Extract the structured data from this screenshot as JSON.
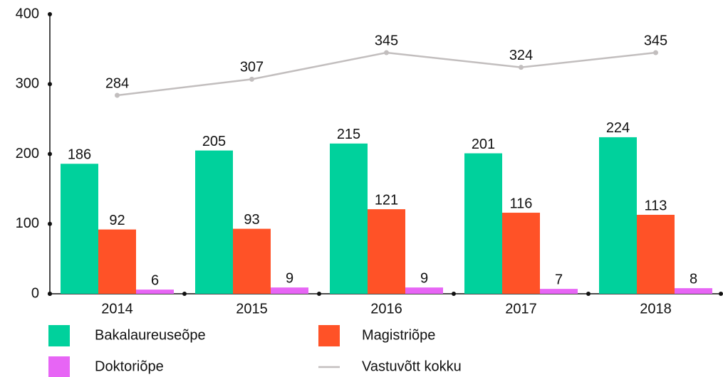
{
  "chart_data": {
    "type": "bar",
    "categories": [
      "2014",
      "2015",
      "2016",
      "2017",
      "2018"
    ],
    "series": [
      {
        "name": "Bakalaureuseõpe",
        "color": "#00d19c",
        "values": [
          186,
          205,
          215,
          201,
          224
        ]
      },
      {
        "name": "Magistriõpe",
        "color": "#ff5227",
        "values": [
          92,
          93,
          121,
          116,
          113
        ]
      },
      {
        "name": "Doktoriõpe",
        "color": "#e765f5",
        "values": [
          6,
          9,
          9,
          7,
          8
        ]
      },
      {
        "name": "Vastuvõtt kokku",
        "type": "line",
        "color": "#c2bebe",
        "values": [
          284,
          307,
          345,
          324,
          345
        ]
      }
    ],
    "ylim": [
      0,
      400
    ],
    "yticks": [
      0,
      100,
      200,
      300,
      400
    ]
  }
}
